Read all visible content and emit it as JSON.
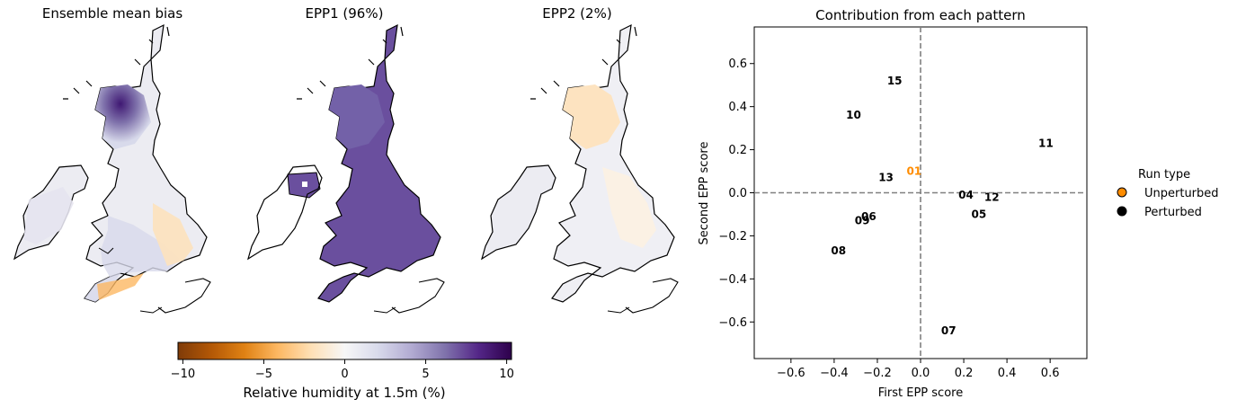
{
  "maps": [
    {
      "title": "Ensemble mean bias"
    },
    {
      "title": "EPP1 (96%)"
    },
    {
      "title": "EPP2 (2%)"
    }
  ],
  "colorbar": {
    "label": "Relative humidity at 1.5m (%)",
    "ticks": [
      "−10",
      "−5",
      "0",
      "5",
      "10"
    ],
    "tick_values": [
      -10,
      -5,
      0,
      5,
      10
    ],
    "range": [
      -10.3,
      10.3
    ],
    "colors": [
      "#7f3b08",
      "#b35806",
      "#e08214",
      "#fdb863",
      "#fee0b6",
      "#f7f7f7",
      "#d8daeb",
      "#b2abd2",
      "#8073ac",
      "#542788",
      "#2d004b"
    ]
  },
  "chart_data": {
    "type": "scatter",
    "title": "Contribution from each pattern",
    "xlabel": "First EPP score",
    "ylabel": "Second EPP score",
    "xlim": [
      -0.77,
      0.77
    ],
    "ylim": [
      -0.77,
      0.77
    ],
    "xticks": [
      "−0.6",
      "−0.4",
      "−0.2",
      "0.0",
      "0.2",
      "0.4",
      "0.6"
    ],
    "xtick_values": [
      -0.6,
      -0.4,
      -0.2,
      0.0,
      0.2,
      0.4,
      0.6
    ],
    "yticks": [
      "−0.6",
      "−0.4",
      "−0.2",
      "0.0",
      "0.2",
      "0.4",
      "0.6"
    ],
    "ytick_values": [
      -0.6,
      -0.4,
      -0.2,
      0.0,
      0.2,
      0.4,
      0.6
    ],
    "reference_lines": {
      "x": 0.0,
      "y": 0.0,
      "style": "dashed",
      "color": "#808080"
    },
    "legend": {
      "title": "Run type",
      "position": "outside right",
      "entries": [
        {
          "label": "Unperturbed",
          "color": "#ff8c00"
        },
        {
          "label": "Perturbed",
          "color": "#000000"
        }
      ]
    },
    "points": [
      {
        "label": "01",
        "x": -0.03,
        "y": 0.1,
        "type": "Unperturbed"
      },
      {
        "label": "04",
        "x": 0.21,
        "y": -0.01,
        "type": "Perturbed"
      },
      {
        "label": "05",
        "x": 0.27,
        "y": -0.1,
        "type": "Perturbed"
      },
      {
        "label": "06",
        "x": -0.24,
        "y": -0.11,
        "type": "Perturbed"
      },
      {
        "label": "07",
        "x": 0.13,
        "y": -0.64,
        "type": "Perturbed"
      },
      {
        "label": "08",
        "x": -0.38,
        "y": -0.27,
        "type": "Perturbed"
      },
      {
        "label": "09",
        "x": -0.27,
        "y": -0.13,
        "type": "Perturbed"
      },
      {
        "label": "10",
        "x": -0.31,
        "y": 0.36,
        "type": "Perturbed"
      },
      {
        "label": "11",
        "x": 0.58,
        "y": 0.23,
        "type": "Perturbed"
      },
      {
        "label": "12",
        "x": 0.33,
        "y": -0.02,
        "type": "Perturbed"
      },
      {
        "label": "13",
        "x": -0.16,
        "y": 0.07,
        "type": "Perturbed"
      },
      {
        "label": "15",
        "x": -0.12,
        "y": 0.52,
        "type": "Perturbed"
      }
    ]
  }
}
